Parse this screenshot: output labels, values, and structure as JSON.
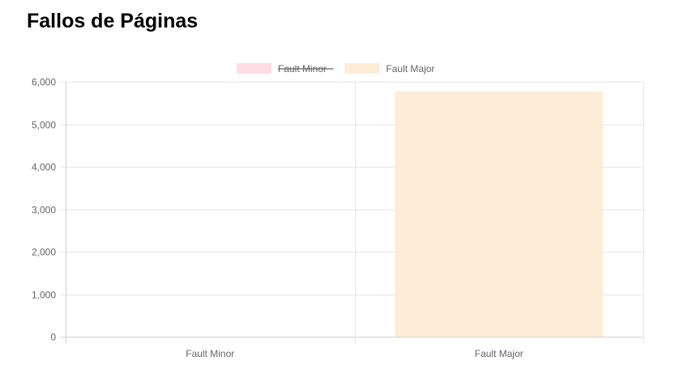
{
  "page": {
    "title": "Fallos de Páginas"
  },
  "chart_data": {
    "type": "bar",
    "categories": [
      "Fault Minor",
      "Fault Major"
    ],
    "series": [
      {
        "name": "Fault Minor",
        "values": [
          0,
          null
        ],
        "color": "#ffdde3",
        "hidden": true
      },
      {
        "name": "Fault Major",
        "values": [
          null,
          5770
        ],
        "color": "#ffecd6",
        "hidden": false
      }
    ],
    "title": "",
    "xlabel": "",
    "ylabel": "",
    "ylim": [
      0,
      6000
    ],
    "yticks": [
      0,
      1000,
      2000,
      3000,
      4000,
      5000,
      6000
    ],
    "ytick_labels": [
      "0",
      "1,000",
      "2,000",
      "3,000",
      "4,000",
      "5,000",
      "6,000"
    ],
    "grid": true,
    "legend_position": "top-center"
  }
}
